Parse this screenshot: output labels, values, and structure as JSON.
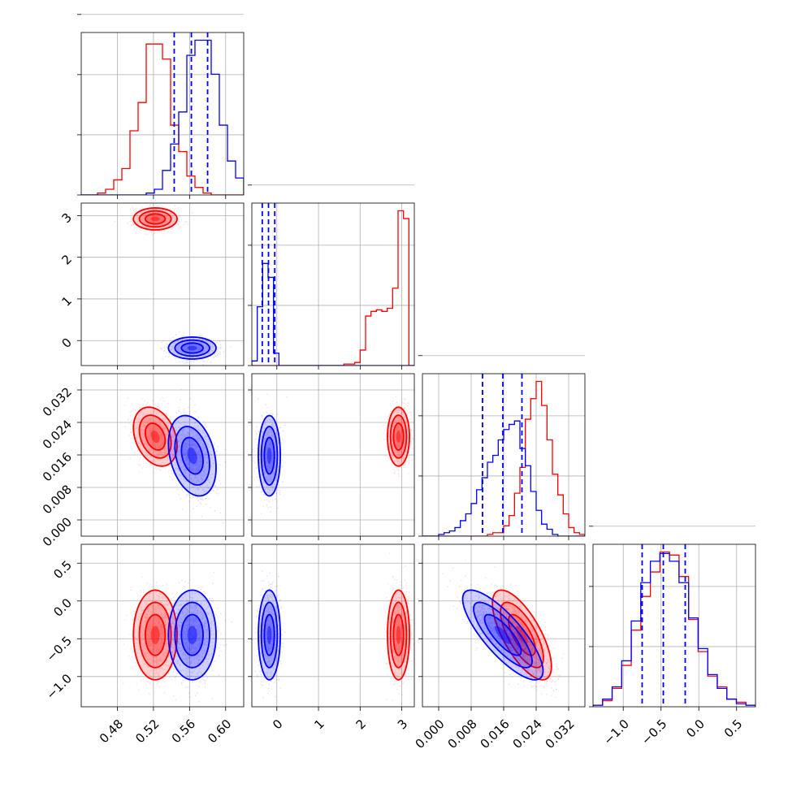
{
  "chart_data": {
    "type": "corner",
    "title": "",
    "parameters": [
      {
        "range": [
          0.44,
          0.62
        ],
        "ticks": [
          0.48,
          0.52,
          0.56,
          0.6
        ],
        "tick_labels": [
          "0.48",
          "0.52",
          "0.56",
          "0.60"
        ]
      },
      {
        "range": [
          -0.6,
          3.3
        ],
        "ticks": [
          0,
          1,
          2,
          3
        ],
        "tick_labels": [
          "0",
          "1",
          "2",
          "3"
        ]
      },
      {
        "range": [
          -0.004,
          0.036
        ],
        "ticks": [
          0.0,
          0.008,
          0.016,
          0.024,
          0.032
        ],
        "tick_labels": [
          "0.000",
          "0.008",
          "0.016",
          "0.024",
          "0.032"
        ]
      },
      {
        "range": [
          -1.4,
          0.75
        ],
        "ticks": [
          -1.0,
          -0.5,
          0.0,
          0.5
        ],
        "tick_labels": [
          "−1.0",
          "−0.5",
          "0.0",
          "0.5"
        ]
      }
    ],
    "series": [
      {
        "color": "#ff0000",
        "means": [
          0.522,
          2.92,
          0.0205,
          -0.45
        ],
        "sds": [
          0.011,
          0.12,
          0.0033,
          0.27
        ],
        "correlations": [
          [
            0,
            2,
            -0.3
          ],
          [
            2,
            3,
            -0.7
          ]
        ],
        "histograms": [
          {
            "bins": [
              0.44,
              0.62
            ],
            "counts": [
              0,
              0,
              1,
              3,
              8,
              14,
              34,
              49,
              80,
              80,
              72,
              37,
              23,
              10,
              4,
              1,
              0,
              0,
              0,
              0
            ]
          },
          {
            "bins": [
              -0.6,
              3.3
            ],
            "counts": [
              0,
              0,
              0,
              0,
              0,
              0,
              0,
              0,
              0,
              0,
              0,
              0,
              0,
              0,
              0,
              0,
              0,
              1,
              1,
              2,
              10,
              32,
              35,
              36,
              35,
              37,
              50,
              100,
              95,
              0
            ]
          },
          {
            "bins": [
              -0.004,
              0.036
            ],
            "counts": [
              0,
              0,
              0,
              0,
              0,
              0,
              0,
              0,
              0,
              0,
              0,
              0,
              1,
              2,
              2,
              6,
              12,
              25,
              40,
              68,
              80,
              90,
              76,
              56,
              36,
              24,
              13,
              5,
              2,
              1
            ]
          },
          {
            "bins": [
              -1.4,
              0.75
            ],
            "counts": [
              1,
              4,
              12,
              27,
              50,
              72,
              88,
              101,
              99,
              85,
              57,
              36,
              20,
              13,
              5,
              3,
              1
            ]
          }
        ]
      },
      {
        "color": "#0000ff",
        "means": [
          0.563,
          -0.18,
          0.0158,
          -0.45
        ],
        "sds": [
          0.012,
          0.12,
          0.0045,
          0.27
        ],
        "correlations": [
          [
            0,
            2,
            -0.3
          ],
          [
            2,
            3,
            -0.8
          ]
        ],
        "histograms": [
          {
            "bins": [
              0.44,
              0.62
            ],
            "counts": [
              0,
              0,
              0,
              0,
              0,
              0,
              0,
              0,
              1,
              3,
              13,
              27,
              44,
              74,
              82,
              82,
              64,
              37,
              18,
              9
            ]
          },
          {
            "bins": [
              -0.6,
              3.3
            ],
            "counts": [
              3,
              38,
              66,
              57,
              8,
              0,
              0,
              0,
              0,
              0,
              0,
              0,
              0,
              0,
              0,
              0,
              0,
              0,
              0,
              0,
              0,
              0,
              0,
              0,
              0,
              0,
              0,
              0,
              0,
              0
            ]
          },
          {
            "bins": [
              -0.004,
              0.036
            ],
            "counts": [
              0,
              0,
              0,
              1,
              2,
              3,
              5,
              9,
              13,
              19,
              27,
              34,
              43,
              47,
              56,
              62,
              65,
              67,
              51,
              41,
              26,
              15,
              7,
              4,
              1,
              0,
              0,
              0,
              0,
              0
            ]
          },
          {
            "bins": [
              -1.4,
              0.75
            ],
            "counts": [
              1,
              5,
              13,
              30,
              56,
              81,
              95,
              100,
              95,
              81,
              58,
              38,
              21,
              12,
              5,
              2,
              1
            ]
          }
        ]
      }
    ],
    "quantile_lines": {
      "color": "#0000ff",
      "values": [
        [
          0.543,
          0.562,
          0.58
        ],
        [
          -0.35,
          -0.2,
          -0.05
        ],
        [
          0.0108,
          0.0158,
          0.0205
        ],
        [
          -0.75,
          -0.47,
          -0.18
        ]
      ]
    },
    "grid": true,
    "legend": "none"
  }
}
